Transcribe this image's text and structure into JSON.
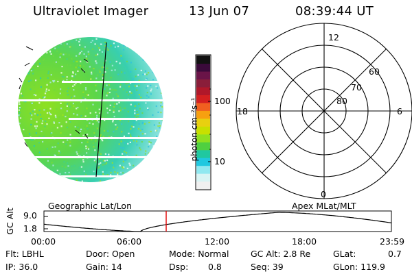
{
  "header": {
    "title": "Ultraviolet Imager",
    "date": "13 Jun 07",
    "time": "08:39:44 UT"
  },
  "colorbar": {
    "unit_label": "photon cm⁻²s⁻¹",
    "ticks": [
      "100",
      "10"
    ],
    "colors_top_to_bottom": [
      "#111111",
      "#3a0a3a",
      "#6a1448",
      "#8a1e3a",
      "#b0182a",
      "#d42020",
      "#f06020",
      "#f7a010",
      "#e8d010",
      "#c8e000",
      "#90e020",
      "#50d040",
      "#20c8a0",
      "#20c8e0",
      "#90e8f0",
      "#d8f4f4",
      "#f0f0f0"
    ]
  },
  "polar": {
    "mlt_labels": [
      "12",
      "18",
      "6",
      "0"
    ],
    "lat_labels": [
      "60",
      "70",
      "80"
    ]
  },
  "timeline": {
    "left_label": "Geographic Lat/Lon",
    "right_label": "Apex MLat/MLT",
    "ylabel": "GC Alt",
    "y_ticks": [
      "9.0",
      "1.8"
    ],
    "x_ticks": [
      "00:00",
      "06:00",
      "12:00",
      "18:00",
      "23:59"
    ],
    "marker_color": "#e00000"
  },
  "footer": {
    "row1": [
      "Flt: LBHL",
      "Door: Open",
      "Mode: Normal",
      "GC Alt: 2.8 Re",
      "GLat:",
      "0.7"
    ],
    "row2": [
      "IP: 36.0",
      "Gain: 14",
      "Dsp:",
      "0.8",
      "Seq: 39",
      "GLon: 119.9"
    ]
  }
}
